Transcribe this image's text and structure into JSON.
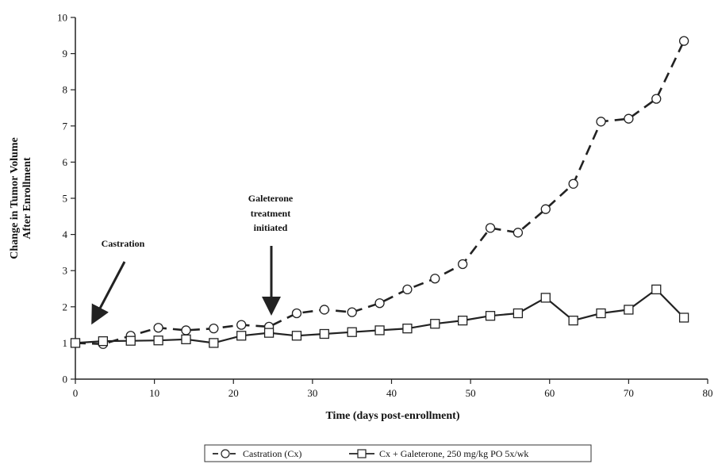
{
  "chart_data": {
    "type": "line",
    "title": "",
    "xlabel": "Time (days post-enrollment)",
    "ylabel": "Change in Tumor Volume After Enrollment",
    "ylabel_lines": [
      "Change in Tumor Volume",
      "After Enrollment"
    ],
    "xlim": [
      0,
      80
    ],
    "ylim": [
      0,
      10
    ],
    "x_ticks": [
      0,
      10,
      20,
      30,
      40,
      50,
      60,
      70,
      80
    ],
    "y_ticks": [
      0,
      1,
      2,
      3,
      4,
      5,
      6,
      7,
      8,
      9,
      10
    ],
    "grid": false,
    "legend_position": "bottom",
    "series": [
      {
        "name": "Castration (Cx)",
        "marker": "circle",
        "line_style": "dashed",
        "color": "#222222",
        "x": [
          0,
          3.5,
          7,
          10.5,
          14,
          17.5,
          21,
          24.5,
          28,
          31.5,
          35,
          38.5,
          42,
          45.5,
          49,
          52.5,
          56,
          59.5,
          63,
          66.5,
          70,
          73.5,
          77
        ],
        "y": [
          1.0,
          0.97,
          1.2,
          1.42,
          1.35,
          1.4,
          1.5,
          1.45,
          1.82,
          1.92,
          1.85,
          2.1,
          2.48,
          2.78,
          3.18,
          4.18,
          4.05,
          4.7,
          5.4,
          7.12,
          7.2,
          7.75,
          9.35
        ]
      },
      {
        "name": "Cx + Galeterone, 250 mg/kg PO 5x/wk",
        "marker": "square",
        "line_style": "solid",
        "color": "#222222",
        "x": [
          0,
          3.5,
          7,
          10.5,
          14,
          17.5,
          21,
          24.5,
          28,
          31.5,
          35,
          38.5,
          42,
          45.5,
          49,
          52.5,
          56,
          59.5,
          63,
          66.5,
          70,
          73.5,
          77
        ],
        "y": [
          1.0,
          1.05,
          1.06,
          1.07,
          1.1,
          1.0,
          1.2,
          1.28,
          1.2,
          1.25,
          1.3,
          1.35,
          1.4,
          1.53,
          1.62,
          1.75,
          1.82,
          2.25,
          1.62,
          1.82,
          1.92,
          2.48,
          1.7
        ]
      }
    ],
    "annotations": [
      {
        "lines": [
          "Castration"
        ],
        "target_x": 2,
        "target_y": 1.5,
        "style": "diagonal-arrow"
      },
      {
        "lines": [
          "Galeterone",
          "treatment",
          "initiated"
        ],
        "target_x": 24.8,
        "target_y": 1.75,
        "style": "vertical-arrow"
      }
    ]
  }
}
